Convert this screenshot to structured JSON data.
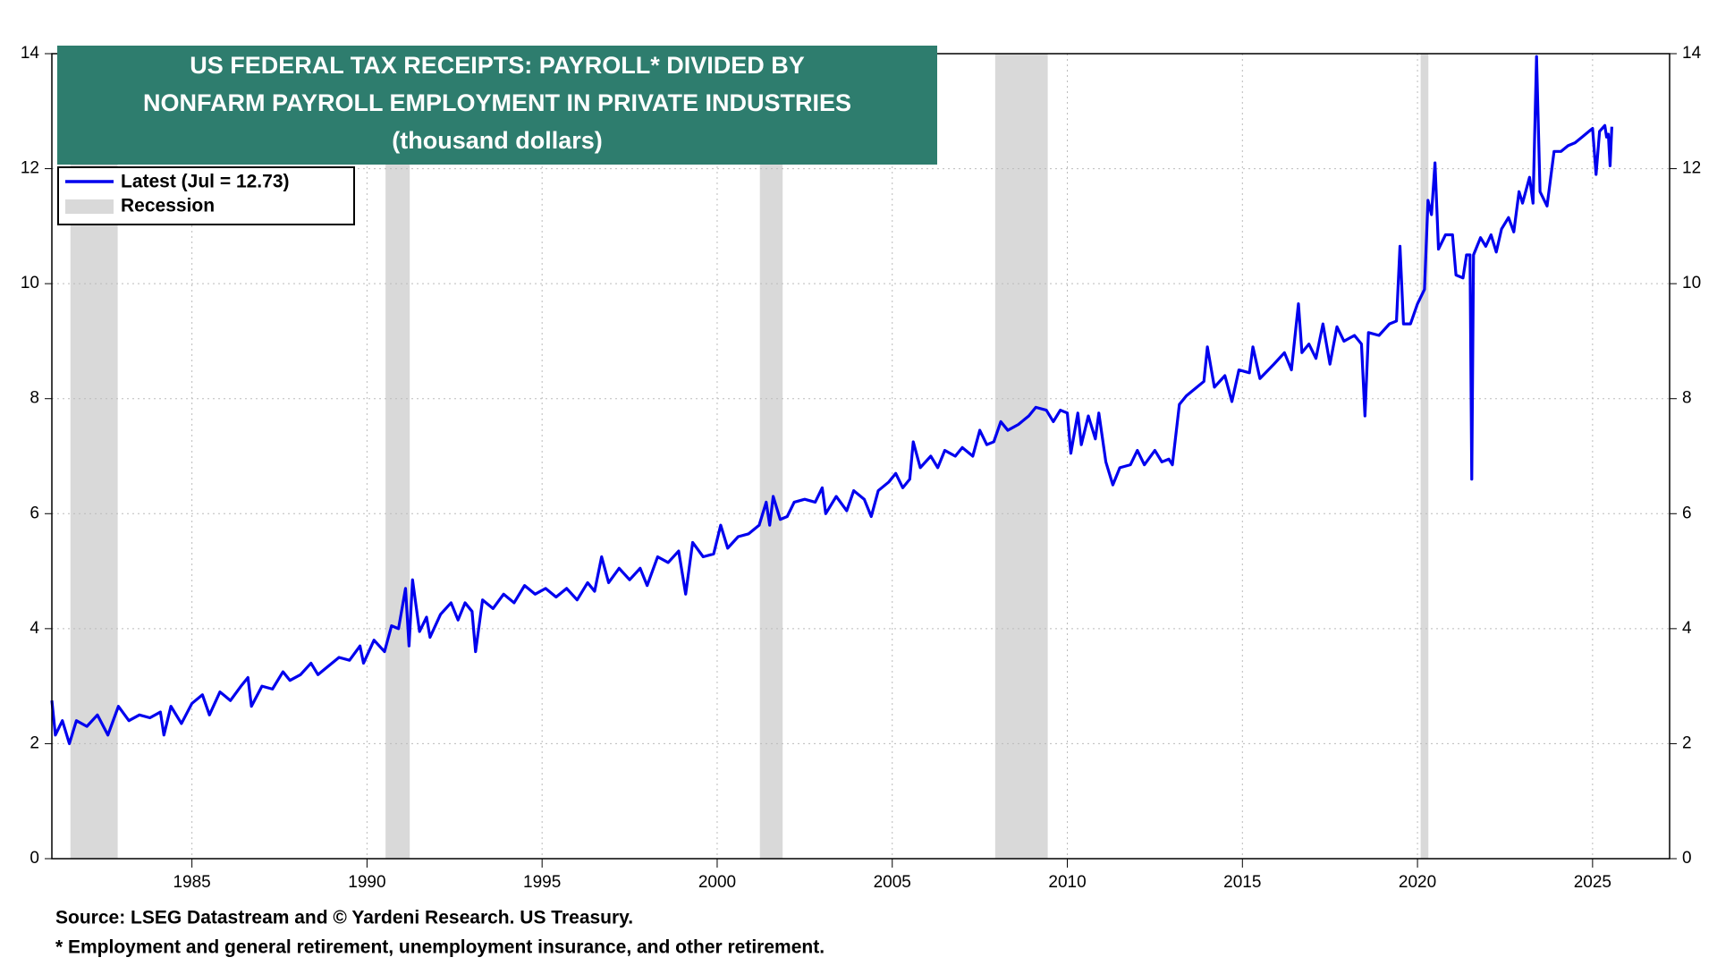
{
  "chart_data": {
    "type": "line",
    "title": [
      "US FEDERAL TAX RECEIPTS: PAYROLL* DIVIDED BY",
      "NONFARM PAYROLL EMPLOYMENT IN PRIVATE INDUSTRIES",
      "(thousand dollars)"
    ],
    "footnotes": [
      "Source: LSEG Datastream and © Yardeni Research. US Treasury.",
      "* Employment and general  retirement, unemployment insurance, and other retirement."
    ],
    "title_color": "#2e7d6e",
    "recession_label": "Recession",
    "recession_color": "#d9d9d9",
    "recessions": [
      [
        1981.53,
        1982.88
      ],
      [
        1990.53,
        1991.22
      ],
      [
        2001.22,
        2001.87
      ],
      [
        2007.94,
        2009.44
      ],
      [
        2020.09,
        2020.31
      ]
    ],
    "xlim": [
      1981,
      2027.2
    ],
    "xticks": [
      1985,
      1990,
      1995,
      2000,
      2005,
      2010,
      2015,
      2020,
      2025
    ],
    "ylim": [
      0,
      14
    ],
    "yticks": [
      0,
      2,
      4,
      6,
      8,
      10,
      12,
      14
    ],
    "grid": true,
    "legend": "top-left",
    "x": [
      1981.0,
      1981.1,
      1981.3,
      1981.5,
      1981.7,
      1982.0,
      1982.3,
      1982.6,
      1982.9,
      1983.2,
      1983.5,
      1983.8,
      1984.1,
      1984.2,
      1984.4,
      1984.7,
      1985.0,
      1985.3,
      1985.5,
      1985.8,
      1986.1,
      1986.4,
      1986.6,
      1986.7,
      1987.0,
      1987.3,
      1987.6,
      1987.8,
      1988.1,
      1988.4,
      1988.6,
      1988.9,
      1989.2,
      1989.5,
      1989.8,
      1989.9,
      1990.2,
      1990.5,
      1990.7,
      1990.9,
      1991.1,
      1991.2,
      1991.3,
      1991.5,
      1991.7,
      1991.8,
      1992.1,
      1992.4,
      1992.6,
      1992.8,
      1993.0,
      1993.1,
      1993.3,
      1993.6,
      1993.9,
      1994.2,
      1994.5,
      1994.8,
      1995.1,
      1995.4,
      1995.7,
      1996.0,
      1996.3,
      1996.5,
      1996.7,
      1996.9,
      1997.2,
      1997.5,
      1997.8,
      1998.0,
      1998.3,
      1998.6,
      1998.9,
      1999.1,
      1999.3,
      1999.6,
      1999.9,
      2000.1,
      2000.3,
      2000.6,
      2000.9,
      2001.2,
      2001.4,
      2001.5,
      2001.6,
      2001.8,
      2002.0,
      2002.2,
      2002.5,
      2002.8,
      2003.0,
      2003.1,
      2003.4,
      2003.7,
      2003.9,
      2004.2,
      2004.4,
      2004.6,
      2004.9,
      2005.1,
      2005.3,
      2005.5,
      2005.6,
      2005.8,
      2006.1,
      2006.3,
      2006.5,
      2006.8,
      2007.0,
      2007.3,
      2007.5,
      2007.7,
      2007.9,
      2008.1,
      2008.3,
      2008.6,
      2008.9,
      2009.1,
      2009.4,
      2009.6,
      2009.8,
      2010.0,
      2010.1,
      2010.3,
      2010.4,
      2010.6,
      2010.8,
      2010.9,
      2011.1,
      2011.3,
      2011.5,
      2011.8,
      2012.0,
      2012.2,
      2012.5,
      2012.7,
      2012.9,
      2013.0,
      2013.2,
      2013.4,
      2013.7,
      2013.9,
      2014.0,
      2014.2,
      2014.5,
      2014.7,
      2014.9,
      2015.2,
      2015.3,
      2015.5,
      2015.9,
      2016.2,
      2016.4,
      2016.6,
      2016.7,
      2016.9,
      2017.1,
      2017.3,
      2017.5,
      2017.7,
      2017.9,
      2018.2,
      2018.4,
      2018.5,
      2018.6,
      2018.9,
      2019.2,
      2019.4,
      2019.5,
      2019.6,
      2019.8,
      2020.0,
      2020.2,
      2020.3,
      2020.4,
      2020.5,
      2020.6,
      2020.8,
      2021.0,
      2021.1,
      2021.3,
      2021.4,
      2021.5,
      2021.55,
      2021.6,
      2021.8,
      2021.95,
      2022.1,
      2022.25,
      2022.4,
      2022.6,
      2022.75,
      2022.9,
      2023.0,
      2023.2,
      2023.3,
      2023.4,
      2023.5,
      2023.7,
      2023.9,
      2024.1,
      2024.3,
      2024.5,
      2024.7,
      2024.9,
      2025.0,
      2025.1,
      2025.2,
      2025.35,
      2025.4,
      2025.45,
      2025.5,
      2025.55
    ],
    "series": [
      {
        "name": "Latest (Jul = 12.73)",
        "color": "#0000ee",
        "values": [
          2.75,
          2.15,
          2.4,
          2.0,
          2.4,
          2.3,
          2.5,
          2.15,
          2.65,
          2.4,
          2.5,
          2.45,
          2.55,
          2.15,
          2.65,
          2.35,
          2.7,
          2.85,
          2.5,
          2.9,
          2.75,
          3.0,
          3.15,
          2.65,
          3.0,
          2.95,
          3.25,
          3.1,
          3.2,
          3.4,
          3.2,
          3.35,
          3.5,
          3.45,
          3.7,
          3.4,
          3.8,
          3.6,
          4.05,
          4.0,
          4.7,
          3.7,
          4.85,
          3.95,
          4.2,
          3.85,
          4.25,
          4.45,
          4.15,
          4.45,
          4.3,
          3.6,
          4.5,
          4.35,
          4.6,
          4.45,
          4.75,
          4.6,
          4.7,
          4.55,
          4.7,
          4.5,
          4.8,
          4.65,
          5.25,
          4.8,
          5.05,
          4.85,
          5.05,
          4.75,
          5.25,
          5.15,
          5.35,
          4.6,
          5.5,
          5.25,
          5.3,
          5.8,
          5.4,
          5.6,
          5.65,
          5.8,
          6.2,
          5.8,
          6.3,
          5.9,
          5.95,
          6.2,
          6.25,
          6.2,
          6.45,
          6.0,
          6.3,
          6.05,
          6.4,
          6.25,
          5.95,
          6.4,
          6.55,
          6.7,
          6.45,
          6.6,
          7.25,
          6.8,
          7.0,
          6.8,
          7.1,
          7.0,
          7.15,
          7.0,
          7.45,
          7.2,
          7.25,
          7.6,
          7.45,
          7.55,
          7.7,
          7.85,
          7.8,
          7.6,
          7.8,
          7.75,
          7.05,
          7.75,
          7.2,
          7.7,
          7.3,
          7.75,
          6.9,
          6.5,
          6.8,
          6.85,
          7.1,
          6.85,
          7.1,
          6.9,
          6.95,
          6.85,
          7.9,
          8.05,
          8.2,
          8.3,
          8.9,
          8.2,
          8.4,
          7.95,
          8.5,
          8.45,
          8.9,
          8.35,
          8.6,
          8.8,
          8.5,
          9.65,
          8.8,
          8.95,
          8.7,
          9.3,
          8.6,
          9.25,
          9.0,
          9.1,
          8.95,
          7.7,
          9.15,
          9.1,
          9.3,
          9.35,
          10.65,
          9.3,
          9.3,
          9.65,
          9.9,
          11.45,
          11.2,
          12.1,
          10.6,
          10.85,
          10.85,
          10.15,
          10.1,
          10.5,
          10.5,
          6.6,
          10.5,
          10.8,
          10.65,
          10.85,
          10.55,
          10.95,
          11.15,
          10.9,
          11.6,
          11.4,
          11.85,
          11.4,
          13.95,
          11.6,
          11.35,
          12.3,
          12.3,
          12.4,
          12.45,
          12.55,
          12.65,
          12.7,
          11.9,
          12.65,
          12.75,
          12.55,
          12.6,
          12.05,
          12.73
        ]
      }
    ]
  }
}
